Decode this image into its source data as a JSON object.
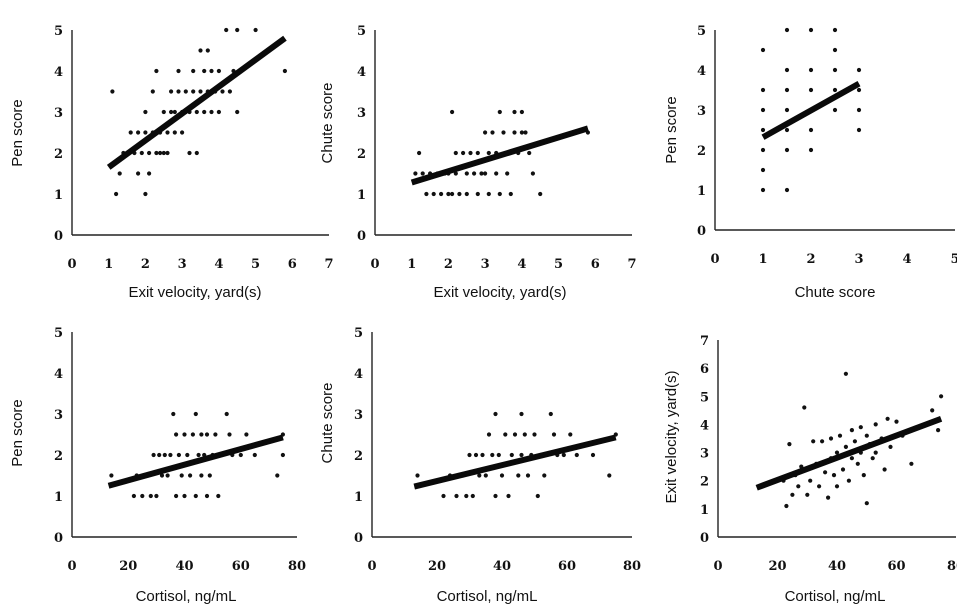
{
  "chart_data": [
    {
      "type": "scatter",
      "xlabel": "Exit velocity, yard(s)",
      "ylabel": "Pen score",
      "xlim": [
        0,
        7
      ],
      "ylim": [
        0,
        5
      ],
      "xticks": [
        0,
        1,
        2,
        3,
        4,
        5,
        6,
        7
      ],
      "yticks": [
        0,
        1,
        2,
        3,
        4,
        5
      ],
      "trendline": [
        [
          1.0,
          1.65
        ],
        [
          5.8,
          4.8
        ]
      ],
      "points": [
        [
          1.1,
          3.5
        ],
        [
          1.2,
          1.0
        ],
        [
          1.3,
          1.5
        ],
        [
          1.4,
          2.0
        ],
        [
          1.5,
          2.0
        ],
        [
          1.6,
          2.5
        ],
        [
          1.7,
          2.0
        ],
        [
          1.8,
          2.5
        ],
        [
          1.8,
          1.5
        ],
        [
          1.9,
          2.0
        ],
        [
          2.0,
          1.0
        ],
        [
          2.0,
          2.5
        ],
        [
          2.0,
          3.0
        ],
        [
          2.1,
          2.0
        ],
        [
          2.1,
          1.5
        ],
        [
          2.2,
          2.5
        ],
        [
          2.2,
          3.5
        ],
        [
          2.3,
          2.0
        ],
        [
          2.3,
          4.0
        ],
        [
          2.4,
          2.5
        ],
        [
          2.4,
          2.0
        ],
        [
          2.5,
          3.0
        ],
        [
          2.5,
          2.0
        ],
        [
          2.6,
          2.5
        ],
        [
          2.6,
          2.0
        ],
        [
          2.7,
          3.0
        ],
        [
          2.7,
          3.5
        ],
        [
          2.8,
          2.5
        ],
        [
          2.8,
          3.0
        ],
        [
          2.9,
          3.5
        ],
        [
          2.9,
          4.0
        ],
        [
          3.0,
          3.0
        ],
        [
          3.0,
          2.5
        ],
        [
          3.1,
          3.0
        ],
        [
          3.1,
          3.5
        ],
        [
          3.2,
          2.0
        ],
        [
          3.2,
          3.0
        ],
        [
          3.3,
          3.5
        ],
        [
          3.3,
          4.0
        ],
        [
          3.4,
          3.0
        ],
        [
          3.4,
          2.0
        ],
        [
          3.5,
          3.5
        ],
        [
          3.5,
          4.5
        ],
        [
          3.6,
          3.0
        ],
        [
          3.6,
          4.0
        ],
        [
          3.7,
          3.5
        ],
        [
          3.7,
          4.5
        ],
        [
          3.8,
          3.0
        ],
        [
          3.8,
          4.0
        ],
        [
          3.9,
          3.5
        ],
        [
          4.0,
          3.0
        ],
        [
          4.0,
          4.0
        ],
        [
          4.1,
          3.5
        ],
        [
          4.2,
          5.0
        ],
        [
          4.3,
          3.5
        ],
        [
          4.4,
          4.0
        ],
        [
          4.5,
          3.0
        ],
        [
          4.5,
          5.0
        ],
        [
          4.6,
          4.0
        ],
        [
          5.0,
          5.0
        ],
        [
          5.8,
          4.0
        ]
      ]
    },
    {
      "type": "scatter",
      "xlabel": "Exit velocity, yard(s)",
      "ylabel": "Chute score",
      "xlim": [
        0,
        7
      ],
      "ylim": [
        0,
        5
      ],
      "xticks": [
        0,
        1,
        2,
        3,
        4,
        5,
        6,
        7
      ],
      "yticks": [
        0,
        1,
        2,
        3,
        4,
        5
      ],
      "trendline": [
        [
          1.0,
          1.28
        ],
        [
          5.8,
          2.6
        ]
      ],
      "points": [
        [
          1.1,
          1.5
        ],
        [
          1.2,
          2.0
        ],
        [
          1.3,
          1.5
        ],
        [
          1.4,
          1.0
        ],
        [
          1.5,
          1.5
        ],
        [
          1.6,
          1.0
        ],
        [
          1.7,
          1.5
        ],
        [
          1.8,
          1.0
        ],
        [
          1.9,
          1.5
        ],
        [
          2.0,
          1.0
        ],
        [
          2.0,
          1.5
        ],
        [
          2.1,
          3.0
        ],
        [
          2.1,
          1.0
        ],
        [
          2.2,
          1.5
        ],
        [
          2.2,
          2.0
        ],
        [
          2.3,
          1.0
        ],
        [
          2.4,
          2.0
        ],
        [
          2.5,
          1.5
        ],
        [
          2.5,
          1.0
        ],
        [
          2.6,
          2.0
        ],
        [
          2.7,
          1.5
        ],
        [
          2.8,
          2.0
        ],
        [
          2.8,
          1.0
        ],
        [
          2.9,
          1.5
        ],
        [
          3.0,
          2.5
        ],
        [
          3.0,
          1.5
        ],
        [
          3.1,
          2.0
        ],
        [
          3.1,
          1.0
        ],
        [
          3.2,
          2.5
        ],
        [
          3.3,
          1.5
        ],
        [
          3.3,
          2.0
        ],
        [
          3.4,
          1.0
        ],
        [
          3.4,
          3.0
        ],
        [
          3.5,
          2.5
        ],
        [
          3.6,
          1.5
        ],
        [
          3.6,
          2.0
        ],
        [
          3.7,
          1.0
        ],
        [
          3.8,
          3.0
        ],
        [
          3.8,
          2.5
        ],
        [
          3.9,
          2.0
        ],
        [
          4.0,
          3.0
        ],
        [
          4.0,
          2.5
        ],
        [
          4.1,
          2.5
        ],
        [
          4.2,
          2.0
        ],
        [
          4.3,
          1.5
        ],
        [
          4.5,
          1.0
        ],
        [
          5.8,
          2.5
        ]
      ]
    },
    {
      "type": "scatter",
      "xlabel": "Chute score",
      "ylabel": "Pen score",
      "xlim": [
        0,
        5
      ],
      "ylim": [
        0,
        5
      ],
      "xticks": [
        0,
        1,
        2,
        3,
        4,
        5
      ],
      "yticks": [
        0,
        1,
        2,
        3,
        4,
        5
      ],
      "trendline": [
        [
          1.0,
          2.32
        ],
        [
          3.0,
          3.66
        ]
      ],
      "points": [
        [
          1.0,
          1.0
        ],
        [
          1.0,
          1.5
        ],
        [
          1.0,
          2.0
        ],
        [
          1.0,
          2.5
        ],
        [
          1.0,
          3.0
        ],
        [
          1.0,
          3.5
        ],
        [
          1.0,
          4.5
        ],
        [
          1.5,
          1.0
        ],
        [
          1.5,
          2.0
        ],
        [
          1.5,
          2.5
        ],
        [
          1.5,
          3.0
        ],
        [
          1.5,
          3.5
        ],
        [
          1.5,
          4.0
        ],
        [
          1.5,
          5.0
        ],
        [
          2.0,
          2.0
        ],
        [
          2.0,
          2.5
        ],
        [
          2.0,
          3.0
        ],
        [
          2.0,
          3.5
        ],
        [
          2.0,
          4.0
        ],
        [
          2.0,
          5.0
        ],
        [
          2.5,
          3.0
        ],
        [
          2.5,
          3.5
        ],
        [
          2.5,
          4.0
        ],
        [
          2.5,
          5.0
        ],
        [
          3.0,
          2.5
        ],
        [
          3.0,
          3.0
        ],
        [
          3.0,
          3.5
        ],
        [
          3.0,
          4.0
        ],
        [
          2.5,
          4.5
        ]
      ]
    },
    {
      "type": "scatter",
      "xlabel": "Cortisol, ng/mL",
      "ylabel": "Pen score",
      "xlim": [
        0,
        80
      ],
      "ylim": [
        0,
        5
      ],
      "xticks": [
        0,
        20,
        40,
        60,
        80
      ],
      "yticks": [
        0,
        1,
        2,
        3,
        4,
        5
      ],
      "trendline": [
        [
          13,
          1.25
        ],
        [
          75,
          2.43
        ]
      ],
      "points": [
        [
          14,
          1.5
        ],
        [
          22,
          1.0
        ],
        [
          23,
          1.5
        ],
        [
          25,
          1.0
        ],
        [
          27,
          1.5
        ],
        [
          28,
          1.0
        ],
        [
          29,
          2.0
        ],
        [
          30,
          1.0
        ],
        [
          31,
          2.0
        ],
        [
          32,
          1.5
        ],
        [
          33,
          2.0
        ],
        [
          34,
          1.5
        ],
        [
          35,
          2.0
        ],
        [
          36,
          3.0
        ],
        [
          37,
          2.5
        ],
        [
          37,
          1.0
        ],
        [
          38,
          2.0
        ],
        [
          39,
          1.5
        ],
        [
          40,
          2.5
        ],
        [
          40,
          1.0
        ],
        [
          41,
          2.0
        ],
        [
          42,
          1.5
        ],
        [
          43,
          2.5
        ],
        [
          44,
          3.0
        ],
        [
          44,
          1.0
        ],
        [
          45,
          2.0
        ],
        [
          46,
          2.5
        ],
        [
          46,
          1.5
        ],
        [
          47,
          2.0
        ],
        [
          48,
          2.5
        ],
        [
          48,
          1.0
        ],
        [
          49,
          1.5
        ],
        [
          50,
          2.0
        ],
        [
          51,
          2.5
        ],
        [
          52,
          1.0
        ],
        [
          53,
          2.0
        ],
        [
          55,
          3.0
        ],
        [
          56,
          2.5
        ],
        [
          57,
          2.0
        ],
        [
          60,
          2.0
        ],
        [
          62,
          2.5
        ],
        [
          65,
          2.0
        ],
        [
          73,
          1.5
        ],
        [
          75,
          2.0
        ],
        [
          75,
          2.5
        ]
      ]
    },
    {
      "type": "scatter",
      "xlabel": "Cortisol, ng/mL",
      "ylabel": "Chute score",
      "xlim": [
        0,
        80
      ],
      "ylim": [
        0,
        5
      ],
      "xticks": [
        0,
        20,
        40,
        60,
        80
      ],
      "yticks": [
        0,
        1,
        2,
        3,
        4,
        5
      ],
      "trendline": [
        [
          13,
          1.23
        ],
        [
          75,
          2.43
        ]
      ],
      "points": [
        [
          14,
          1.5
        ],
        [
          22,
          1.0
        ],
        [
          24,
          1.5
        ],
        [
          26,
          1.0
        ],
        [
          28,
          1.5
        ],
        [
          29,
          1.0
        ],
        [
          30,
          2.0
        ],
        [
          31,
          1.0
        ],
        [
          32,
          2.0
        ],
        [
          33,
          1.5
        ],
        [
          34,
          2.0
        ],
        [
          35,
          1.5
        ],
        [
          36,
          2.5
        ],
        [
          37,
          2.0
        ],
        [
          38,
          3.0
        ],
        [
          38,
          1.0
        ],
        [
          39,
          2.0
        ],
        [
          40,
          1.5
        ],
        [
          41,
          2.5
        ],
        [
          42,
          1.0
        ],
        [
          43,
          2.0
        ],
        [
          44,
          2.5
        ],
        [
          45,
          1.5
        ],
        [
          46,
          3.0
        ],
        [
          46,
          2.0
        ],
        [
          47,
          2.5
        ],
        [
          48,
          1.5
        ],
        [
          49,
          2.0
        ],
        [
          50,
          2.5
        ],
        [
          51,
          1.0
        ],
        [
          52,
          2.0
        ],
        [
          53,
          1.5
        ],
        [
          55,
          3.0
        ],
        [
          56,
          2.5
        ],
        [
          57,
          2.0
        ],
        [
          59,
          2.0
        ],
        [
          61,
          2.5
        ],
        [
          63,
          2.0
        ],
        [
          68,
          2.0
        ],
        [
          73,
          1.5
        ],
        [
          75,
          2.5
        ]
      ]
    },
    {
      "type": "scatter",
      "xlabel": "Cortisol, ng/mL",
      "ylabel": "Exit velocity, yard(s)",
      "xlim": [
        0,
        80
      ],
      "ylim": [
        0,
        7
      ],
      "xticks": [
        0,
        20,
        40,
        60,
        80
      ],
      "yticks": [
        0,
        1,
        2,
        3,
        4,
        5,
        6,
        7
      ],
      "trendline": [
        [
          13,
          1.75
        ],
        [
          75,
          4.2
        ]
      ],
      "points": [
        [
          14,
          1.8
        ],
        [
          22,
          2.0
        ],
        [
          23,
          1.1
        ],
        [
          24,
          3.3
        ],
        [
          25,
          1.5
        ],
        [
          26,
          2.2
        ],
        [
          27,
          1.8
        ],
        [
          28,
          2.5
        ],
        [
          29,
          4.6
        ],
        [
          30,
          1.5
        ],
        [
          31,
          2.0
        ],
        [
          32,
          3.4
        ],
        [
          33,
          2.6
        ],
        [
          34,
          1.8
        ],
        [
          35,
          3.4
        ],
        [
          36,
          2.3
        ],
        [
          37,
          1.4
        ],
        [
          38,
          2.8
        ],
        [
          38,
          3.5
        ],
        [
          39,
          2.2
        ],
        [
          40,
          3.0
        ],
        [
          40,
          1.8
        ],
        [
          41,
          3.6
        ],
        [
          42,
          2.4
        ],
        [
          43,
          5.8
        ],
        [
          43,
          3.2
        ],
        [
          44,
          2.0
        ],
        [
          45,
          3.8
        ],
        [
          45,
          2.8
        ],
        [
          46,
          3.4
        ],
        [
          47,
          2.6
        ],
        [
          48,
          3.9
        ],
        [
          48,
          3.0
        ],
        [
          49,
          2.2
        ],
        [
          50,
          3.6
        ],
        [
          50,
          1.2
        ],
        [
          51,
          3.3
        ],
        [
          52,
          2.8
        ],
        [
          53,
          4.0
        ],
        [
          53,
          3.0
        ],
        [
          55,
          3.5
        ],
        [
          56,
          2.4
        ],
        [
          57,
          4.2
        ],
        [
          58,
          3.2
        ],
        [
          60,
          4.1
        ],
        [
          62,
          3.6
        ],
        [
          65,
          2.6
        ],
        [
          72,
          4.5
        ],
        [
          74,
          3.8
        ],
        [
          75,
          5.0
        ]
      ]
    }
  ]
}
